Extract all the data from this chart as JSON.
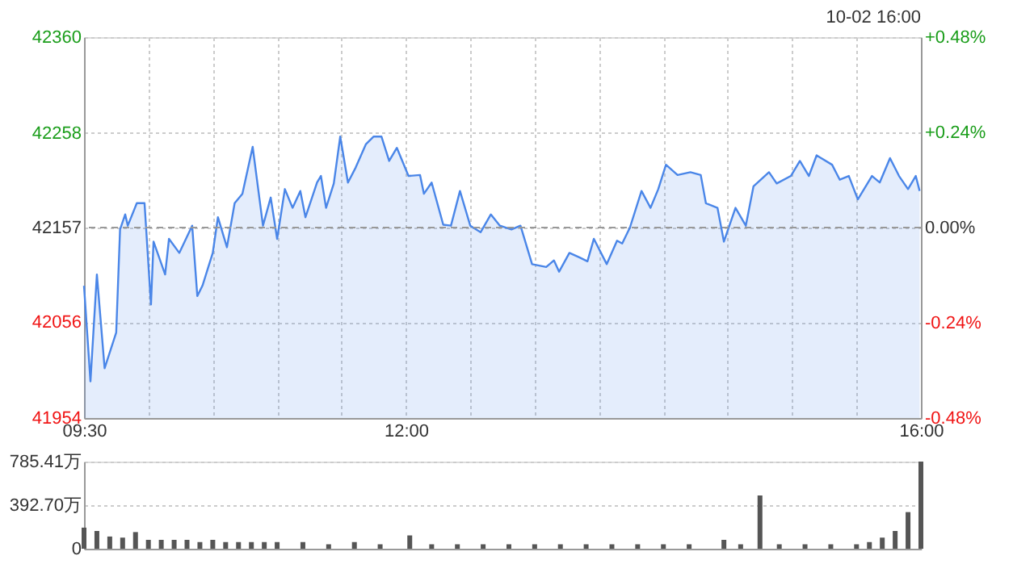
{
  "chart_data": [
    {
      "type": "area",
      "annotations": [
        "10-02 16:00"
      ],
      "grid": true,
      "x": [
        9.5,
        9.55,
        9.6,
        9.66,
        9.75,
        9.78,
        9.82,
        9.84,
        9.91,
        9.97,
        10.02,
        10.04,
        10.13,
        10.16,
        10.24,
        10.34,
        10.38,
        10.42,
        10.5,
        10.54,
        10.61,
        10.67,
        10.73,
        10.81,
        10.89,
        10.95,
        11.0,
        11.06,
        11.12,
        11.18,
        11.22,
        11.31,
        11.34,
        11.38,
        11.44,
        11.49,
        11.55,
        11.61,
        11.69,
        11.75,
        11.81,
        11.87,
        11.93,
        12.02,
        12.11,
        12.14,
        12.2,
        12.29,
        12.35,
        12.42,
        12.5,
        12.58,
        12.66,
        12.73,
        12.82,
        12.89,
        12.98,
        13.09,
        13.15,
        13.19,
        13.27,
        13.35,
        13.41,
        13.46,
        13.56,
        13.64,
        13.68,
        13.74,
        13.83,
        13.9,
        13.96,
        14.02,
        14.11,
        14.21,
        14.29,
        14.33,
        14.42,
        14.47,
        14.56,
        14.64,
        14.7,
        14.82,
        14.88,
        14.99,
        15.06,
        15.13,
        15.19,
        15.31,
        15.37,
        15.44,
        15.51,
        15.62,
        15.68,
        15.76,
        15.83,
        15.9,
        15.96,
        15.99
      ],
      "series": [
        {
          "color": "#4a86e8",
          "values": [
            42095,
            41993,
            42107,
            42007,
            42045,
            42155,
            42171,
            42159,
            42183,
            42183,
            42075,
            42142,
            42107,
            42145,
            42130,
            42159,
            42084,
            42095,
            42130,
            42168,
            42136,
            42183,
            42193,
            42243,
            42159,
            42189,
            42145,
            42198,
            42178,
            42196,
            42168,
            42205,
            42212,
            42178,
            42204,
            42254,
            42205,
            42221,
            42246,
            42254,
            42254,
            42228,
            42242,
            42212,
            42213,
            42193,
            42205,
            42160,
            42159,
            42196,
            42159,
            42152,
            42171,
            42159,
            42155,
            42159,
            42118,
            42115,
            42122,
            42110,
            42130,
            42125,
            42121,
            42145,
            42118,
            42143,
            42140,
            42157,
            42196,
            42178,
            42198,
            42224,
            42213,
            42216,
            42213,
            42183,
            42178,
            42142,
            42178,
            42159,
            42201,
            42216,
            42204,
            42212,
            42228,
            42212,
            42234,
            42224,
            42208,
            42212,
            42187,
            42212,
            42205,
            42231,
            42212,
            42198,
            42212,
            42196
          ]
        }
      ],
      "xlim": [
        9.5,
        16
      ],
      "xticks": [
        {
          "value": 9.5,
          "label": "09:30"
        },
        {
          "value": 10,
          "label": null
        },
        {
          "value": 10.5,
          "label": null
        },
        {
          "value": 11,
          "label": null
        },
        {
          "value": 11.5,
          "label": null
        },
        {
          "value": 12,
          "label": "12:00"
        },
        {
          "value": 12.5,
          "label": null
        },
        {
          "value": 13,
          "label": null
        },
        {
          "value": 13.5,
          "label": null
        },
        {
          "value": 14,
          "label": null
        },
        {
          "value": 14.5,
          "label": null
        },
        {
          "value": 15,
          "label": null
        },
        {
          "value": 15.5,
          "label": null
        },
        {
          "value": 16,
          "label": "16:00"
        }
      ],
      "ylim": [
        41954,
        42360
      ],
      "yticks": [
        41954,
        42056,
        42157,
        42258,
        42360
      ],
      "y2lim": [
        -0.48,
        0.48
      ],
      "y2ticks": [
        {
          "value": -0.48,
          "label": "-0.48%"
        },
        {
          "value": -0.24,
          "label": "-0.24%"
        },
        {
          "value": 0,
          "label": "0.00%"
        },
        {
          "value": 0.24,
          "label": "+0.24%"
        },
        {
          "value": 0.48,
          "label": "+0.48%"
        }
      ],
      "ref_lines": [
        {
          "axis": "y",
          "value": 42157,
          "color": "#999999",
          "line_style": "dashed"
        }
      ]
    },
    {
      "type": "bar",
      "grid": "y",
      "tick_labels": "y",
      "x": [
        9.5,
        9.6,
        9.7,
        9.8,
        9.9,
        10.0,
        10.1,
        10.2,
        10.3,
        10.4,
        10.5,
        10.6,
        10.7,
        10.8,
        10.9,
        11.0,
        11.2,
        11.4,
        11.6,
        11.8,
        12.03,
        12.2,
        12.4,
        12.6,
        12.8,
        13.0,
        13.2,
        13.4,
        13.6,
        13.8,
        14.0,
        14.2,
        14.47,
        14.6,
        14.75,
        14.9,
        15.1,
        15.3,
        15.5,
        15.6,
        15.7,
        15.8,
        15.9,
        16.0
      ],
      "values": [
        190,
        160,
        110,
        100,
        150,
        80,
        80,
        80,
        80,
        60,
        80,
        60,
        60,
        60,
        60,
        60,
        60,
        40,
        60,
        40,
        120,
        40,
        40,
        40,
        40,
        40,
        40,
        40,
        40,
        40,
        40,
        40,
        80,
        40,
        480,
        40,
        40,
        40,
        40,
        60,
        100,
        160,
        330,
        785.41
      ],
      "color": "#555555",
      "xlim": [
        9.5,
        16
      ],
      "ylim": [
        0,
        785.41
      ],
      "yticks": [
        0,
        {
          "value": 392.7,
          "label": "392.70万"
        },
        {
          "value": 785.41,
          "label": "785.41万"
        }
      ]
    }
  ]
}
